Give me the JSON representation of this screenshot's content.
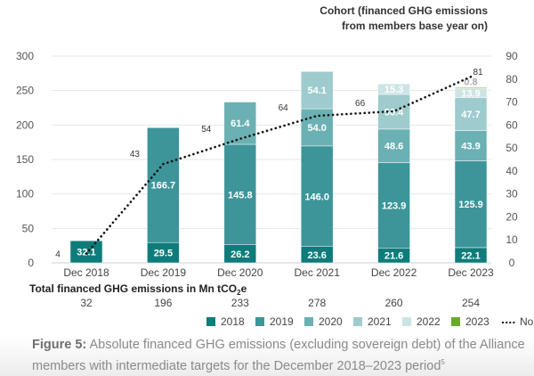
{
  "chart_data": {
    "type": "bar",
    "stacked": true,
    "categories": [
      "Dec 2018",
      "Dec 2019",
      "Dec 2020",
      "Dec 2021",
      "Dec 2022",
      "Dec 2023"
    ],
    "series": [
      {
        "name": "2018",
        "color": "#0e7c7b",
        "values": [
          32.1,
          29.5,
          26.2,
          23.6,
          21.6,
          22.1
        ]
      },
      {
        "name": "2019",
        "color": "#3d9599",
        "values": [
          null,
          166.7,
          145.8,
          146.0,
          123.9,
          125.9
        ]
      },
      {
        "name": "2020",
        "color": "#6bb0b3",
        "values": [
          null,
          null,
          61.4,
          54.0,
          48.6,
          43.9
        ]
      },
      {
        "name": "2021",
        "color": "#9ecbcd",
        "values": [
          null,
          null,
          null,
          54.1,
          50.4,
          47.7
        ]
      },
      {
        "name": "2022",
        "color": "#cde4e5",
        "values": [
          null,
          null,
          null,
          null,
          15.3,
          13.9
        ]
      },
      {
        "name": "2023",
        "color": "#6aaa2a",
        "values": [
          null,
          null,
          null,
          null,
          null,
          0.8
        ]
      }
    ],
    "line_series": {
      "name": "No. of members",
      "axis": "right",
      "style": "dotted",
      "color": "#111111",
      "values": [
        4,
        43,
        54,
        64,
        66,
        81
      ]
    },
    "ylim": [
      0,
      300
    ],
    "yticks": [
      0,
      50,
      100,
      150,
      200,
      250,
      300
    ],
    "y2lim": [
      0,
      90
    ],
    "y2ticks": [
      0,
      10,
      20,
      30,
      40,
      50,
      60,
      70,
      80,
      90
    ],
    "y2label": [
      "Cohort (financed GHG emissions",
      "from members base year on)"
    ],
    "totals_label": "Total financed GHG emissions in Mn tCO",
    "totals_label_sub": "2",
    "totals_label_end": "e",
    "totals": [
      "32",
      "196",
      "233",
      "278",
      "260",
      "254"
    ],
    "grid": true,
    "legend_placement": "bottom"
  },
  "caption": {
    "label": "Figure 5:",
    "text": " Absolute financed GHG emissions (excluding sovereign debt) of the Alliance members with intermediate targets for the December 2018–2023 period",
    "footnote": "5"
  }
}
